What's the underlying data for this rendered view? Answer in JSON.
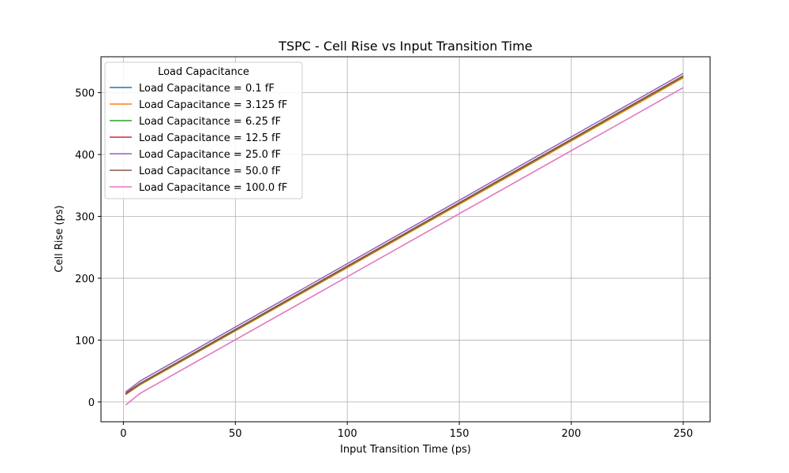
{
  "chart_data": {
    "type": "line",
    "title": "TSPC - Cell Rise vs Input Transition Time",
    "xlabel": "Input Transition Time (ps)",
    "ylabel": "Cell Rise (ps)",
    "xlim": [
      -10,
      262
    ],
    "ylim": [
      -32,
      558
    ],
    "xticks": [
      0,
      50,
      100,
      150,
      200,
      250
    ],
    "yticks": [
      0,
      100,
      200,
      300,
      400,
      500
    ],
    "grid": true,
    "legend": {
      "title": "Load Capacitance",
      "placement": "upper-left"
    },
    "x": [
      1,
      7.5,
      250
    ],
    "series": [
      {
        "name": "Load Capacitance = 0.1 fF",
        "color": "#1f77b4",
        "values": [
          12,
          28,
          525
        ]
      },
      {
        "name": "Load Capacitance = 3.125 fF",
        "color": "#ff7f0e",
        "values": [
          12,
          28,
          524
        ]
      },
      {
        "name": "Load Capacitance = 6.25 fF",
        "color": "#2ca02c",
        "values": [
          13,
          29,
          526
        ]
      },
      {
        "name": "Load Capacitance = 12.5 fF",
        "color": "#d62728",
        "values": [
          14,
          30,
          527
        ]
      },
      {
        "name": "Load Capacitance = 25.0 fF",
        "color": "#9467bd",
        "values": [
          16,
          34,
          531
        ]
      },
      {
        "name": "Load Capacitance = 50.0 fF",
        "color": "#8c564b",
        "values": [
          13,
          30,
          527
        ]
      },
      {
        "name": "Load Capacitance = 100.0 fF",
        "color": "#e377c2",
        "values": [
          -5,
          14,
          508
        ]
      }
    ]
  }
}
